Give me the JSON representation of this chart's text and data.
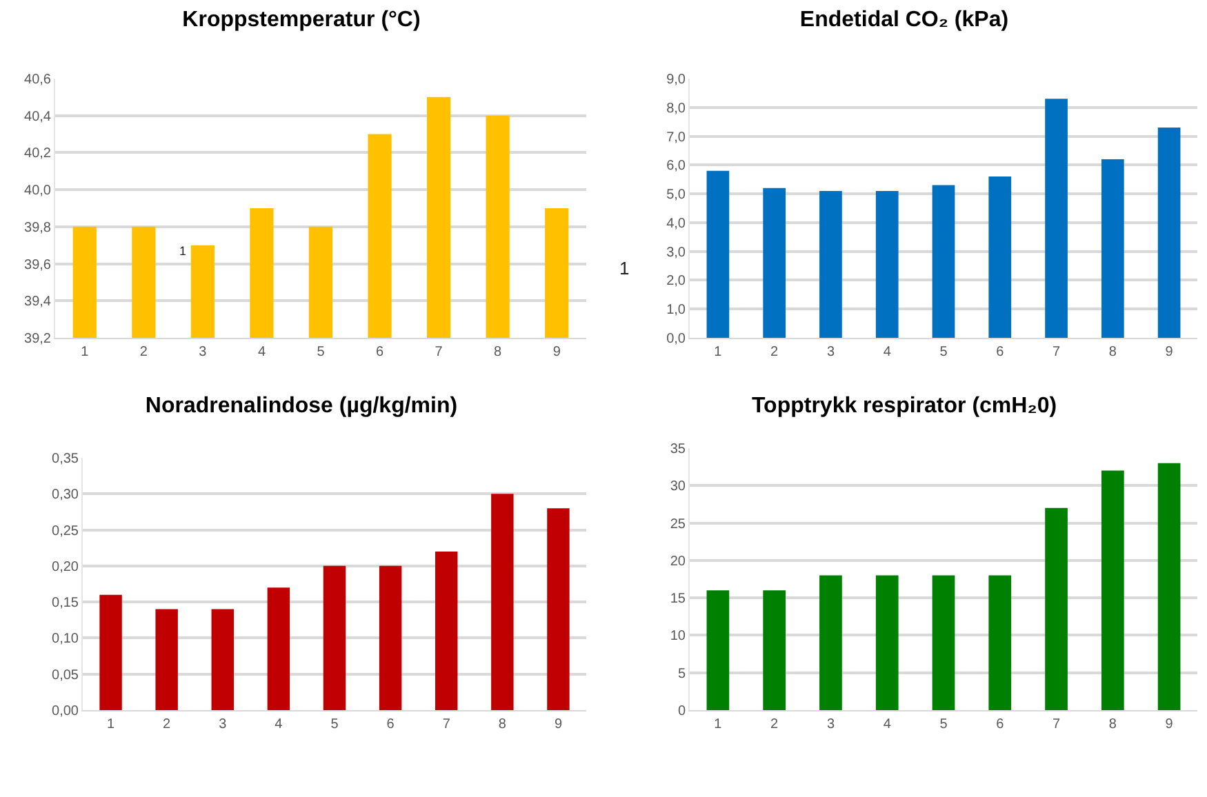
{
  "chart_data": [
    {
      "type": "bar",
      "title": "Kroppstemperatur (°C)",
      "categories": [
        "1",
        "2",
        "3",
        "4",
        "5",
        "6",
        "7",
        "8",
        "9"
      ],
      "values": [
        39.8,
        39.8,
        39.7,
        39.9,
        39.8,
        40.3,
        40.5,
        40.4,
        39.9
      ],
      "color": "#ffc000",
      "ylim": [
        39.2,
        40.6
      ],
      "yticks": [
        {
          "value": 39.2,
          "label": "39,2"
        },
        {
          "value": 39.4,
          "label": "39,4"
        },
        {
          "value": 39.6,
          "label": "39,6"
        },
        {
          "value": 39.8,
          "label": "39,8"
        },
        {
          "value": 40.0,
          "label": "40,0"
        },
        {
          "value": 40.2,
          "label": "40,2"
        },
        {
          "value": 40.4,
          "label": "40,4"
        },
        {
          "value": 40.6,
          "label": "40,6"
        }
      ],
      "grid": "y",
      "annotations": [
        "1"
      ]
    },
    {
      "type": "bar",
      "title": "Endetidal CO₂ (kPa)",
      "categories": [
        "1",
        "2",
        "3",
        "4",
        "5",
        "6",
        "7",
        "8",
        "9"
      ],
      "values": [
        5.8,
        5.2,
        5.1,
        5.1,
        5.3,
        5.6,
        8.3,
        6.2,
        7.3
      ],
      "color": "#0070c0",
      "ylim": [
        0,
        9
      ],
      "yticks": [
        {
          "value": 0,
          "label": "0,0"
        },
        {
          "value": 1,
          "label": "1,0"
        },
        {
          "value": 2,
          "label": "2,0"
        },
        {
          "value": 3,
          "label": "3,0"
        },
        {
          "value": 4,
          "label": "4,0"
        },
        {
          "value": 5,
          "label": "5,0"
        },
        {
          "value": 6,
          "label": "6,0"
        },
        {
          "value": 7,
          "label": "7,0"
        },
        {
          "value": 8,
          "label": "8,0"
        },
        {
          "value": 9,
          "label": "9,0"
        }
      ],
      "grid": "y",
      "annotations": [
        "1"
      ]
    },
    {
      "type": "bar",
      "title": "Noradrenalindose (µg/kg/min)",
      "categories": [
        "1",
        "2",
        "3",
        "4",
        "5",
        "6",
        "7",
        "8",
        "9"
      ],
      "values": [
        0.16,
        0.14,
        0.14,
        0.17,
        0.2,
        0.2,
        0.22,
        0.3,
        0.28
      ],
      "color": "#c00000",
      "ylim": [
        0,
        0.35
      ],
      "yticks": [
        {
          "value": 0,
          "label": "0,00"
        },
        {
          "value": 0.05,
          "label": "0,05"
        },
        {
          "value": 0.1,
          "label": "0,10"
        },
        {
          "value": 0.15,
          "label": "0,15"
        },
        {
          "value": 0.2,
          "label": "0,20"
        },
        {
          "value": 0.25,
          "label": "0,25"
        },
        {
          "value": 0.3,
          "label": "0,30"
        },
        {
          "value": 0.35,
          "label": "0,35"
        }
      ],
      "grid": "y"
    },
    {
      "type": "bar",
      "title": "Topptrykk respirator (cmH₂0)",
      "categories": [
        "1",
        "2",
        "3",
        "4",
        "5",
        "6",
        "7",
        "8",
        "9"
      ],
      "values": [
        16,
        16,
        18,
        18,
        18,
        18,
        27,
        32,
        33
      ],
      "color": "#008000",
      "ylim": [
        0,
        35
      ],
      "yticks": [
        0,
        5,
        10,
        15,
        20,
        25,
        30,
        35
      ],
      "grid": "y"
    }
  ]
}
